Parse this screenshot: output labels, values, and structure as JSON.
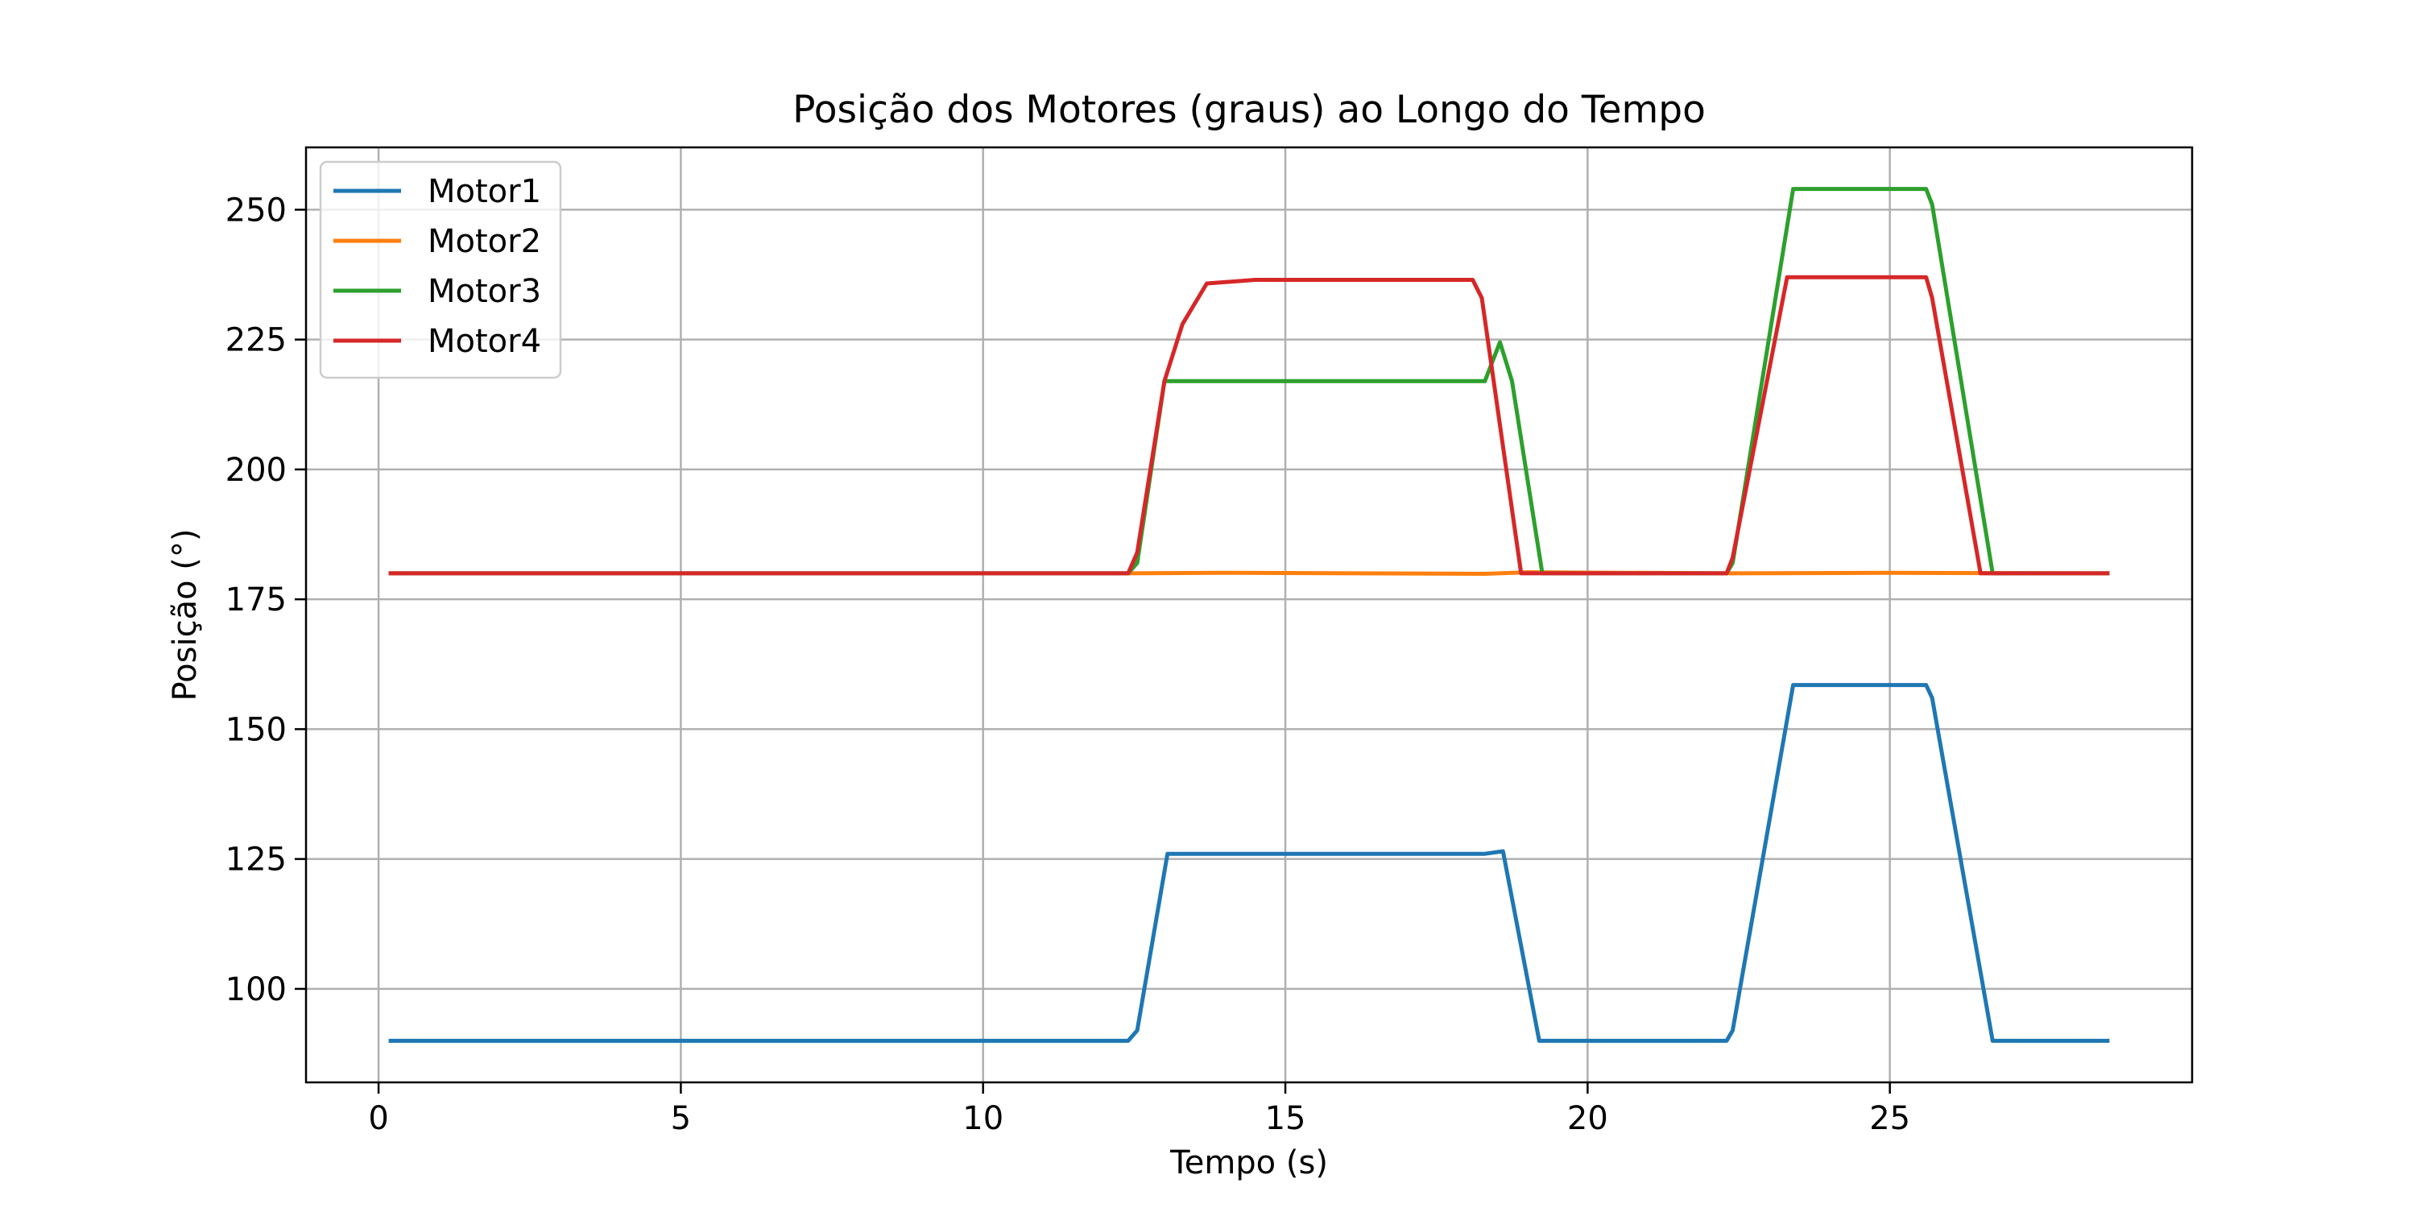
{
  "chart_data": {
    "type": "line",
    "title": "Posição dos Motores (graus) ao Longo do Tempo",
    "xlabel": "Tempo (s)",
    "ylabel": "Posição (°)",
    "xlim": [
      -1.2,
      30.0
    ],
    "ylim": [
      82,
      262
    ],
    "xticks": [
      0,
      5,
      10,
      15,
      20,
      25
    ],
    "yticks": [
      100,
      125,
      150,
      175,
      200,
      225,
      250
    ],
    "grid": true,
    "legend_position": "top-left",
    "series": [
      {
        "name": "Motor1",
        "color": "#1f77b4",
        "points": [
          [
            0.2,
            90
          ],
          [
            12.4,
            90
          ],
          [
            12.55,
            92
          ],
          [
            13.05,
            126
          ],
          [
            18.3,
            126
          ],
          [
            18.6,
            126.5
          ],
          [
            19.2,
            90
          ],
          [
            22.3,
            90
          ],
          [
            22.4,
            92
          ],
          [
            23.4,
            158.5
          ],
          [
            25.6,
            158.5
          ],
          [
            25.7,
            156
          ],
          [
            26.7,
            90
          ],
          [
            28.6,
            90
          ]
        ]
      },
      {
        "name": "Motor2",
        "color": "#ff7f0e",
        "points": [
          [
            0.2,
            180
          ],
          [
            12.4,
            180
          ],
          [
            14.0,
            180.1
          ],
          [
            18.3,
            179.9
          ],
          [
            19.0,
            180.2
          ],
          [
            22.3,
            180
          ],
          [
            25.0,
            180.1
          ],
          [
            28.6,
            180
          ]
        ]
      },
      {
        "name": "Motor3",
        "color": "#2ca02c",
        "points": [
          [
            0.2,
            180
          ],
          [
            12.4,
            180
          ],
          [
            12.55,
            182
          ],
          [
            13.0,
            217
          ],
          [
            18.3,
            217
          ],
          [
            18.55,
            224.5
          ],
          [
            18.75,
            217
          ],
          [
            19.25,
            180
          ],
          [
            22.3,
            180
          ],
          [
            22.4,
            182
          ],
          [
            23.4,
            254
          ],
          [
            25.6,
            254
          ],
          [
            25.7,
            251
          ],
          [
            26.7,
            180
          ],
          [
            28.6,
            180
          ]
        ]
      },
      {
        "name": "Motor4",
        "color": "#d62728",
        "points": [
          [
            0.2,
            180
          ],
          [
            12.4,
            180
          ],
          [
            12.55,
            184
          ],
          [
            13.0,
            217
          ],
          [
            13.3,
            228
          ],
          [
            13.7,
            235.8
          ],
          [
            14.5,
            236.5
          ],
          [
            18.1,
            236.5
          ],
          [
            18.25,
            233
          ],
          [
            18.9,
            180
          ],
          [
            22.3,
            180
          ],
          [
            22.4,
            183
          ],
          [
            23.3,
            237
          ],
          [
            25.6,
            237
          ],
          [
            25.7,
            233
          ],
          [
            26.5,
            180
          ],
          [
            28.6,
            180
          ]
        ]
      }
    ]
  }
}
